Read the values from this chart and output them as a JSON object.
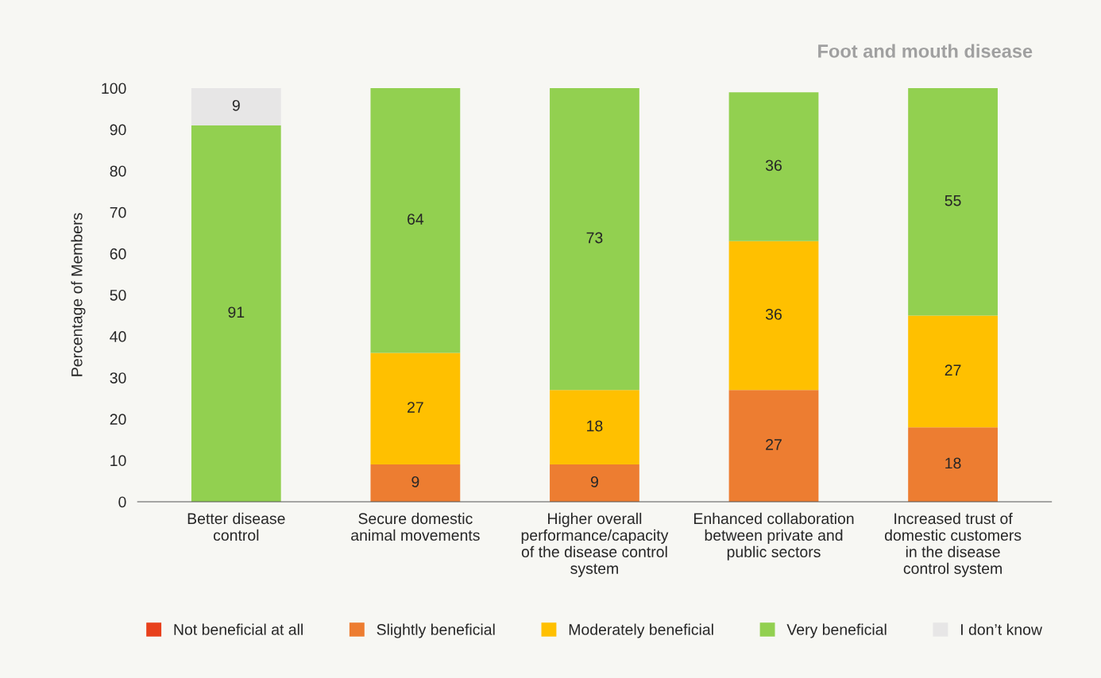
{
  "chart_data": {
    "type": "bar",
    "stacked": true,
    "title": "Foot and mouth disease",
    "ylabel": "Percentage of Members",
    "categories": [
      "Better disease\ncontrol",
      "Secure domestic\nanimal movements",
      "Higher overall\nperformance/capacity\nof the disease control\nsystem",
      "Enhanced collaboration\nbetween private and\npublic sectors",
      "Increased trust of\ndomestic customers\nin the disease\ncontrol system"
    ],
    "series": [
      {
        "name": "Not beneficial at all",
        "color": "#e8401c",
        "values": [
          null,
          null,
          null,
          null,
          null
        ],
        "value_labels": [
          null,
          null,
          null,
          null,
          null
        ]
      },
      {
        "name": "Slightly beneficial",
        "color": "#ed7d31",
        "values": [
          null,
          9,
          9,
          27,
          18
        ],
        "value_labels": [
          null,
          "9",
          "9",
          "27",
          "18"
        ]
      },
      {
        "name": "Moderately beneficial",
        "color": "#ffc000",
        "values": [
          null,
          27,
          18,
          36,
          27
        ],
        "value_labels": [
          null,
          "27",
          "18",
          "36",
          "27"
        ]
      },
      {
        "name": "Very beneficial",
        "color": "#92d050",
        "values": [
          91,
          64,
          73,
          36,
          55
        ],
        "value_labels": [
          "91",
          "64",
          "73",
          "36",
          "55"
        ]
      },
      {
        "name": "I don’t know",
        "color": "#e7e6e6",
        "values": [
          9,
          null,
          null,
          null,
          null
        ],
        "value_labels": [
          "9",
          null,
          null,
          null,
          null
        ]
      }
    ],
    "ylim": [
      0,
      100
    ],
    "yticks": [
      0,
      10,
      20,
      30,
      40,
      50,
      60,
      70,
      80,
      90,
      100
    ],
    "grid": false,
    "legend": "bottom"
  }
}
